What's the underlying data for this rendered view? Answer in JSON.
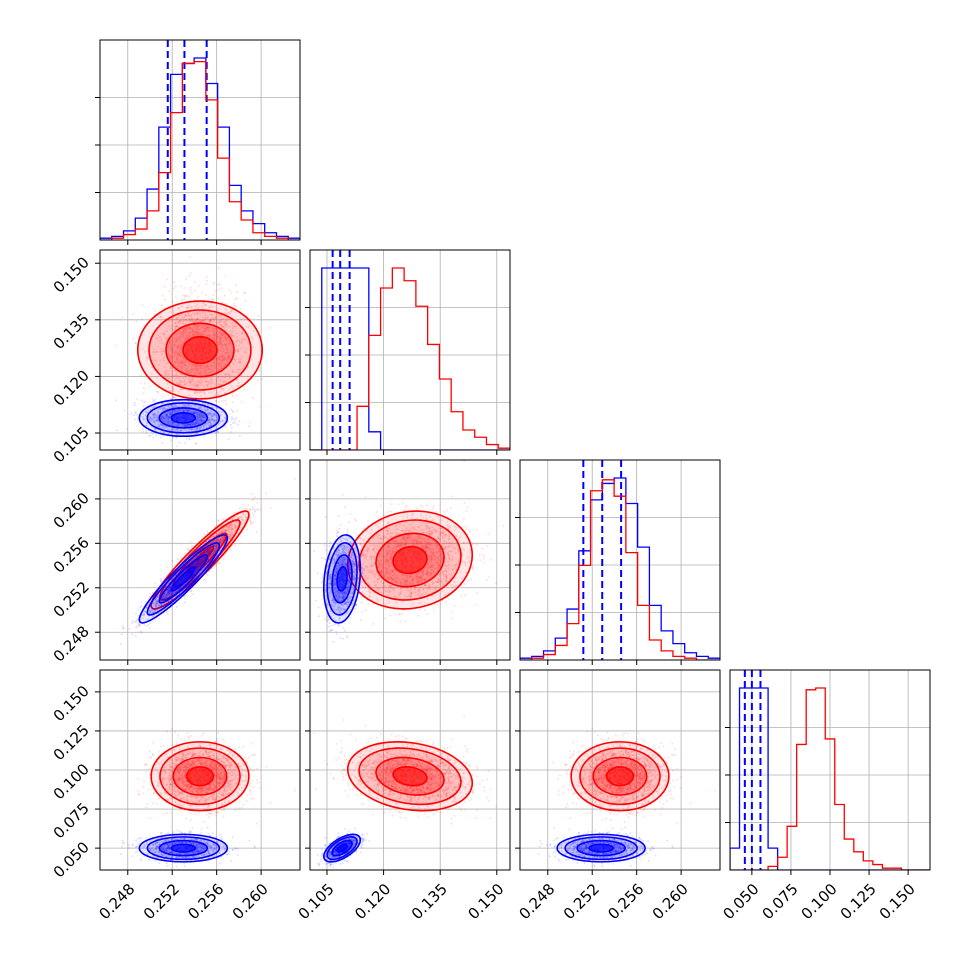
{
  "chart_data": {
    "type": "corner",
    "parameters": [
      {
        "range": [
          0.2455,
          0.2635
        ],
        "ticks": [
          0.248,
          0.252,
          0.256,
          0.26
        ],
        "tick_labels": [
          "0.248",
          "0.252",
          "0.256",
          "0.260"
        ]
      },
      {
        "range": [
          0.1005,
          0.1535
        ],
        "ticks": [
          0.105,
          0.12,
          0.135,
          0.15
        ],
        "tick_labels": [
          "0.105",
          "0.120",
          "0.135",
          "0.150"
        ]
      },
      {
        "range": [
          0.2455,
          0.2635
        ],
        "ticks": [
          0.248,
          0.252,
          0.256,
          0.26
        ],
        "tick_labels": [
          "0.248",
          "0.252",
          "0.256",
          "0.260"
        ]
      },
      {
        "range": [
          0.036,
          0.164
        ],
        "ticks": [
          0.05,
          0.075,
          0.1,
          0.125,
          0.15
        ],
        "tick_labels": [
          "0.050",
          "0.075",
          "0.100",
          "0.125",
          "0.150"
        ]
      }
    ],
    "series": [
      {
        "color": "#0000ff",
        "role": "reference",
        "mean": [
          0.253,
          0.109,
          0.2528,
          0.05
        ],
        "sd": [
          0.0018,
          0.0022,
          0.0018,
          0.004
        ],
        "quantiles": [
          [
            0.2516,
            0.2531,
            0.2551
          ],
          [
            0.1065,
            0.1085,
            0.111
          ],
          [
            0.2512,
            0.2529,
            0.2546
          ],
          [
            0.0455,
            0.05,
            0.0555
          ]
        ],
        "hist_heights": [
          [
            0.01,
            0.02,
            0.05,
            0.12,
            0.28,
            0.62,
            0.91,
            0.97,
            1.0,
            0.86,
            0.62,
            0.3,
            0.16,
            0.09,
            0.04,
            0.02,
            0.01
          ],
          [
            0.0,
            1.0,
            1.0,
            1.0,
            1.0,
            0.1,
            0.0,
            0.0,
            0.0,
            0.0,
            0.0,
            0.0,
            0.0,
            0.0,
            0.0,
            0.0,
            0.0
          ],
          [
            0.01,
            0.02,
            0.05,
            0.12,
            0.28,
            0.6,
            0.88,
            0.97,
            1.0,
            0.86,
            0.62,
            0.3,
            0.16,
            0.09,
            0.04,
            0.02,
            0.01
          ],
          [
            0.12,
            1.0,
            1.0,
            1.0,
            0.12,
            0.0,
            0.0,
            0.0,
            0.0,
            0.0,
            0.0,
            0.0,
            0.0,
            0.0,
            0.0,
            0.0,
            0.0,
            0.0,
            0.0,
            0.0,
            0.0
          ]
        ]
      },
      {
        "color": "#ff0000",
        "role": "posterior",
        "mean": [
          0.2545,
          0.127,
          0.2545,
          0.096
        ],
        "sd": [
          0.002,
          0.0075,
          0.002,
          0.01
        ],
        "hist_heights": [
          [
            0.0,
            0.01,
            0.03,
            0.06,
            0.16,
            0.37,
            0.7,
            0.97,
            0.98,
            0.77,
            0.45,
            0.21,
            0.11,
            0.04,
            0.02,
            0.01,
            0.0
          ],
          [
            0.0,
            0.0,
            0.0,
            0.0,
            0.24,
            0.63,
            0.89,
            1.0,
            0.93,
            0.79,
            0.58,
            0.39,
            0.21,
            0.11,
            0.07,
            0.03,
            0.01
          ],
          [
            0.0,
            0.01,
            0.03,
            0.08,
            0.2,
            0.52,
            0.93,
            0.99,
            0.9,
            0.59,
            0.3,
            0.11,
            0.05,
            0.02,
            0.01,
            0.0,
            0.0
          ],
          [
            0.0,
            0.0,
            0.0,
            0.0,
            0.02,
            0.07,
            0.24,
            0.69,
            0.99,
            1.0,
            0.72,
            0.36,
            0.17,
            0.1,
            0.05,
            0.03,
            0.01,
            0.01,
            0.0,
            0.0,
            0.0
          ]
        ]
      }
    ],
    "correlations": {
      "1-0": [
        0.0,
        0.0
      ],
      "2-0": [
        0.93,
        0.93
      ],
      "2-1": [
        0.2,
        0.1
      ],
      "3-0": [
        0.0,
        0.0
      ],
      "3-1": [
        0.6,
        -0.2
      ],
      "3-2": [
        0.0,
        0.0
      ]
    },
    "grid": true,
    "title": "",
    "xlabel": "",
    "ylabel": ""
  }
}
